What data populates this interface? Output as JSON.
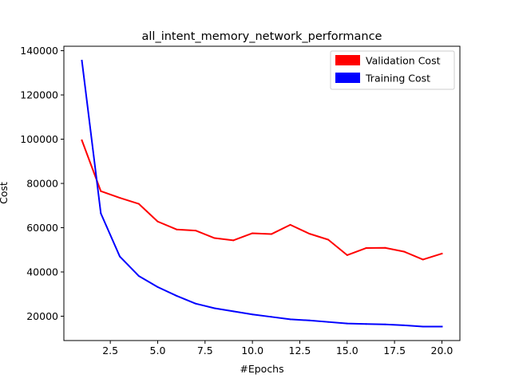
{
  "chart_data": {
    "type": "line",
    "title": "all_intent_memory_network_performance",
    "xlabel": "#Epochs",
    "ylabel": "Cost",
    "xlim": [
      0.05,
      20.95
    ],
    "ylim": [
      9000,
      142000
    ],
    "xticks": [
      2.5,
      5.0,
      7.5,
      10.0,
      12.5,
      15.0,
      17.5,
      20.0
    ],
    "xtick_labels": [
      "2.5",
      "5.0",
      "7.5",
      "10.0",
      "12.5",
      "15.0",
      "17.5",
      "20.0"
    ],
    "yticks": [
      20000,
      40000,
      60000,
      80000,
      100000,
      120000,
      140000
    ],
    "ytick_labels": [
      "20000",
      "40000",
      "60000",
      "80000",
      "100000",
      "120000",
      "140000"
    ],
    "grid": false,
    "legend_position": "top-right",
    "x": [
      1,
      2,
      3,
      4,
      5,
      6,
      7,
      8,
      9,
      10,
      11,
      12,
      13,
      14,
      15,
      16,
      17,
      18,
      19,
      20
    ],
    "series": [
      {
        "name": "Validation Cost",
        "color": "#ff0000",
        "values": [
          99500,
          76500,
          73500,
          70800,
          62800,
          59200,
          58700,
          55300,
          54300,
          57500,
          57100,
          61300,
          57300,
          54600,
          47600,
          50800,
          50900,
          49200,
          45600,
          48300
        ]
      },
      {
        "name": "Training Cost",
        "color": "#0000ff",
        "values": [
          135500,
          66500,
          47000,
          38200,
          33200,
          29200,
          25700,
          23600,
          22200,
          20800,
          19700,
          18600,
          18100,
          17400,
          16700,
          16500,
          16300,
          15900,
          15300,
          15300
        ]
      }
    ]
  }
}
